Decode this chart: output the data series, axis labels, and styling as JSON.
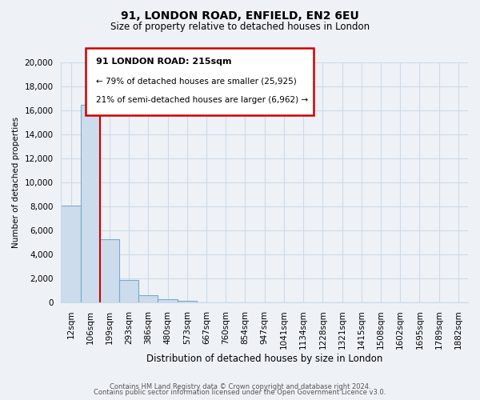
{
  "title": "91, LONDON ROAD, ENFIELD, EN2 6EU",
  "subtitle": "Size of property relative to detached houses in London",
  "xlabel": "Distribution of detached houses by size in London",
  "ylabel": "Number of detached properties",
  "bar_color": "#ccdcec",
  "bar_edge_color": "#7aaac8",
  "categories": [
    "12sqm",
    "106sqm",
    "199sqm",
    "293sqm",
    "386sqm",
    "480sqm",
    "573sqm",
    "667sqm",
    "760sqm",
    "854sqm",
    "947sqm",
    "1041sqm",
    "1134sqm",
    "1228sqm",
    "1321sqm",
    "1415sqm",
    "1508sqm",
    "1602sqm",
    "1695sqm",
    "1789sqm",
    "1882sqm"
  ],
  "values": [
    8100,
    16500,
    5300,
    1850,
    600,
    290,
    100,
    0,
    0,
    0,
    0,
    0,
    0,
    0,
    0,
    0,
    0,
    0,
    0,
    0,
    0
  ],
  "ylim": [
    0,
    20000
  ],
  "yticks": [
    0,
    2000,
    4000,
    6000,
    8000,
    10000,
    12000,
    14000,
    16000,
    18000,
    20000
  ],
  "property_label": "91 LONDON ROAD: 215sqm",
  "annotation_line1": "← 79% of detached houses are smaller (25,925)",
  "annotation_line2": "21% of semi-detached houses are larger (6,962) →",
  "footer1": "Contains HM Land Registry data © Crown copyright and database right 2024.",
  "footer2": "Contains public sector information licensed under the Open Government Licence v3.0.",
  "property_line_color": "#cc0000",
  "annotation_box_color": "#ffffff",
  "annotation_box_edge_color": "#cc0000",
  "grid_color": "#ccdbe8",
  "background_color": "#eef2f7"
}
